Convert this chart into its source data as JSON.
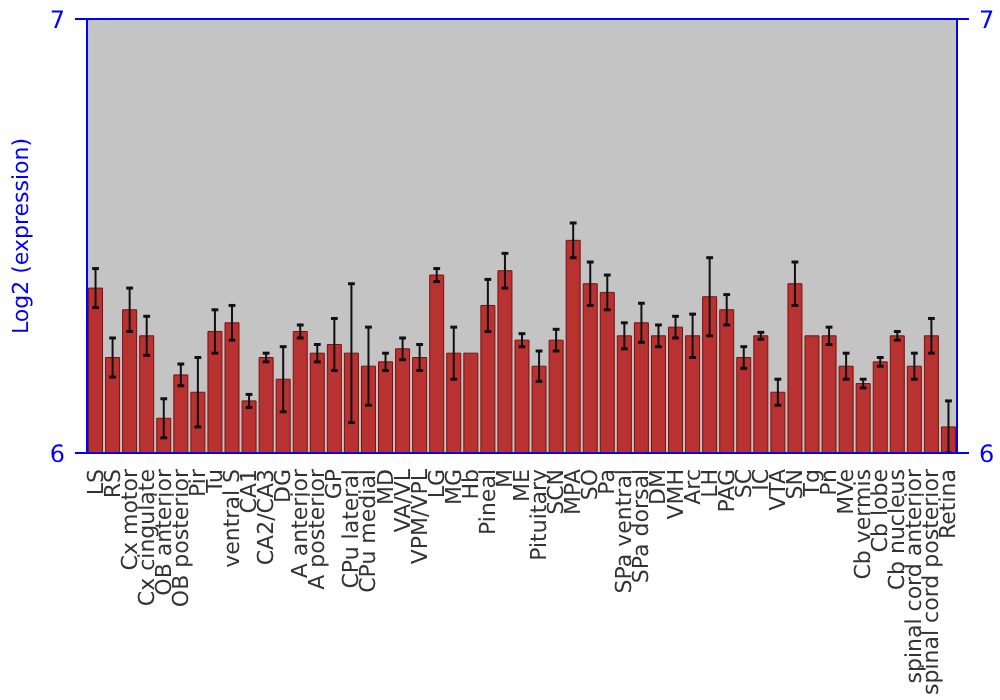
{
  "chart_data": {
    "type": "bar",
    "ylabel": "Log2 (expression)",
    "categories": [
      "LS",
      "RS",
      "Cx motor",
      "Cx cingulate",
      "OB anterior",
      "OB posterior",
      "Pir",
      "Tu",
      "ventral S",
      "CA1",
      "CA2/CA3",
      "DG",
      "A anterior",
      "A posterior",
      "GP",
      "CPu lateral",
      "CPu medial",
      "MD",
      "VA/VL",
      "VPM/VPL",
      "LG",
      "MG",
      "Hb",
      "Pineal",
      "M",
      "ME",
      "Pituitary",
      "SCN",
      "MPA",
      "SO",
      "Pa",
      "SPa ventral",
      "SPa dorsal",
      "DM",
      "VMH",
      "Arc",
      "LH",
      "PAG",
      "SC",
      "IC",
      "VTA",
      "SN",
      "Tg",
      "Pn",
      "MVe",
      "Cb vermis",
      "Cb lobe",
      "Cb nucleus",
      "spinal cord anterior",
      "spinal cord posterior",
      "Retina"
    ],
    "values": [
      6.38,
      6.22,
      6.33,
      6.27,
      6.08,
      6.18,
      6.14,
      6.28,
      6.3,
      6.12,
      6.22,
      6.17,
      6.28,
      6.23,
      6.25,
      6.23,
      6.2,
      6.21,
      6.24,
      6.22,
      6.41,
      6.23,
      6.23,
      6.34,
      6.42,
      6.26,
      6.2,
      6.26,
      6.49,
      6.39,
      6.37,
      6.27,
      6.3,
      6.27,
      6.29,
      6.27,
      6.36,
      6.33,
      6.22,
      6.27,
      6.14,
      6.39,
      6.27,
      6.27,
      6.2,
      6.16,
      6.21,
      6.27,
      6.2,
      6.27,
      6.06
    ],
    "errors": [
      0.045,
      0.045,
      0.05,
      0.045,
      0.045,
      0.025,
      0.08,
      0.05,
      0.04,
      0.015,
      0.01,
      0.075,
      0.015,
      0.02,
      0.06,
      0.16,
      0.09,
      0.02,
      0.025,
      0.03,
      0.015,
      0.06,
      null,
      0.06,
      0.04,
      0.015,
      0.035,
      0.025,
      0.04,
      0.05,
      0.04,
      0.03,
      0.045,
      0.025,
      0.025,
      0.05,
      0.09,
      0.035,
      0.025,
      0.008,
      0.03,
      0.05,
      null,
      0.02,
      0.03,
      0.01,
      0.01,
      0.01,
      0.03,
      0.04,
      0.06
    ],
    "color": "#b83232",
    "ylim": [
      6,
      7
    ],
    "yticks": [
      6,
      7
    ],
    "y2lim": [
      6,
      7
    ],
    "y2ticks": [
      6,
      7
    ],
    "grid": false
  }
}
